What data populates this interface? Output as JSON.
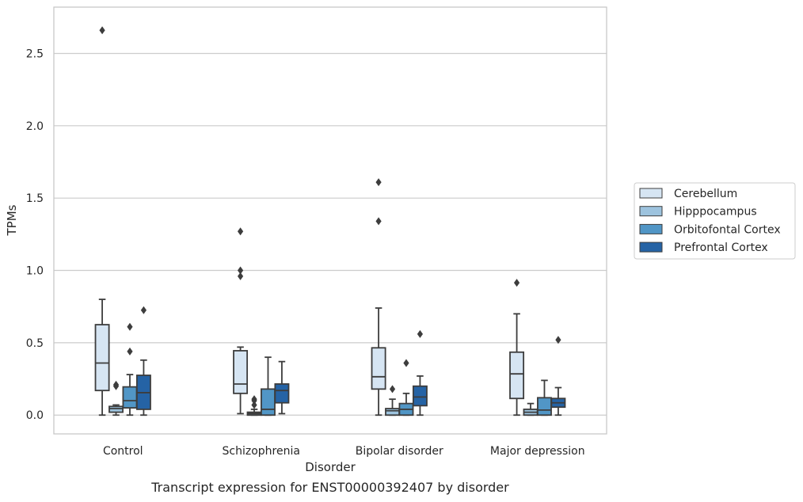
{
  "caption": "Transcript expression for ENST00000392407 by disorder",
  "colors": {
    "Cerebellum": "#d6e5f3",
    "Hipppocampus": "#9dc3de",
    "Orbitofontal Cortex": "#5196c6",
    "Prefrontal Cortex": "#2563a5",
    "edge": "#3d3d3d",
    "grid": "#cccccc",
    "frame": "#c8c8c8"
  },
  "chart_data": {
    "type": "box",
    "title": "",
    "xlabel": "Disorder",
    "ylabel": "TPMs",
    "ylim": [
      -0.13,
      2.82
    ],
    "yticks": [
      "0.0",
      "0.5",
      "1.0",
      "1.5",
      "2.0",
      "2.5"
    ],
    "ytick_values": [
      0.0,
      0.5,
      1.0,
      1.5,
      2.0,
      2.5
    ],
    "categories": [
      "Control",
      "Schizophrenia",
      "Bipolar disorder",
      "Major depression"
    ],
    "grid": "horizontal",
    "legend_position": "right",
    "series": [
      {
        "name": "Cerebellum",
        "boxes": [
          {
            "whisker_low": 0.0,
            "q1": 0.17,
            "median": 0.36,
            "q3": 0.625,
            "whisker_high": 0.8,
            "outliers": [
              2.66
            ]
          },
          {
            "whisker_low": 0.01,
            "q1": 0.15,
            "median": 0.215,
            "q3": 0.445,
            "whisker_high": 0.47,
            "outliers": [
              1.27,
              1.0,
              0.96
            ]
          },
          {
            "whisker_low": 0.0,
            "q1": 0.18,
            "median": 0.265,
            "q3": 0.465,
            "whisker_high": 0.74,
            "outliers": [
              1.61,
              1.34
            ]
          },
          {
            "whisker_low": 0.0,
            "q1": 0.115,
            "median": 0.285,
            "q3": 0.435,
            "whisker_high": 0.7,
            "outliers": [
              0.915
            ]
          }
        ]
      },
      {
        "name": "Hipppocampus",
        "boxes": [
          {
            "whisker_low": 0.0,
            "q1": 0.02,
            "median": 0.045,
            "q3": 0.06,
            "whisker_high": 0.07,
            "outliers": [
              0.21,
              0.2
            ]
          },
          {
            "whisker_low": 0.0,
            "q1": 0.0,
            "median": 0.01,
            "q3": 0.02,
            "whisker_high": 0.04,
            "outliers": [
              0.11,
              0.1,
              0.07
            ]
          },
          {
            "whisker_low": 0.0,
            "q1": 0.0,
            "median": 0.03,
            "q3": 0.045,
            "whisker_high": 0.11,
            "outliers": [
              0.18
            ]
          },
          {
            "whisker_low": 0.0,
            "q1": 0.0,
            "median": 0.02,
            "q3": 0.04,
            "whisker_high": 0.08,
            "outliers": []
          }
        ]
      },
      {
        "name": "Orbitofontal Cortex",
        "boxes": [
          {
            "whisker_low": 0.0,
            "q1": 0.05,
            "median": 0.1,
            "q3": 0.195,
            "whisker_high": 0.28,
            "outliers": [
              0.61,
              0.44
            ]
          },
          {
            "whisker_low": 0.0,
            "q1": 0.0,
            "median": 0.04,
            "q3": 0.18,
            "whisker_high": 0.4,
            "outliers": []
          },
          {
            "whisker_low": 0.0,
            "q1": 0.0,
            "median": 0.04,
            "q3": 0.08,
            "whisker_high": 0.15,
            "outliers": [
              0.36
            ]
          },
          {
            "whisker_low": 0.0,
            "q1": 0.0,
            "median": 0.035,
            "q3": 0.12,
            "whisker_high": 0.24,
            "outliers": []
          }
        ]
      },
      {
        "name": "Prefrontal Cortex",
        "boxes": [
          {
            "whisker_low": 0.0,
            "q1": 0.04,
            "median": 0.155,
            "q3": 0.275,
            "whisker_high": 0.38,
            "outliers": [
              0.725
            ]
          },
          {
            "whisker_low": 0.01,
            "q1": 0.085,
            "median": 0.17,
            "q3": 0.215,
            "whisker_high": 0.37,
            "outliers": []
          },
          {
            "whisker_low": 0.0,
            "q1": 0.065,
            "median": 0.125,
            "q3": 0.2,
            "whisker_high": 0.27,
            "outliers": [
              0.56
            ]
          },
          {
            "whisker_low": 0.0,
            "q1": 0.055,
            "median": 0.085,
            "q3": 0.115,
            "whisker_high": 0.19,
            "outliers": [
              0.52
            ]
          }
        ]
      }
    ]
  }
}
